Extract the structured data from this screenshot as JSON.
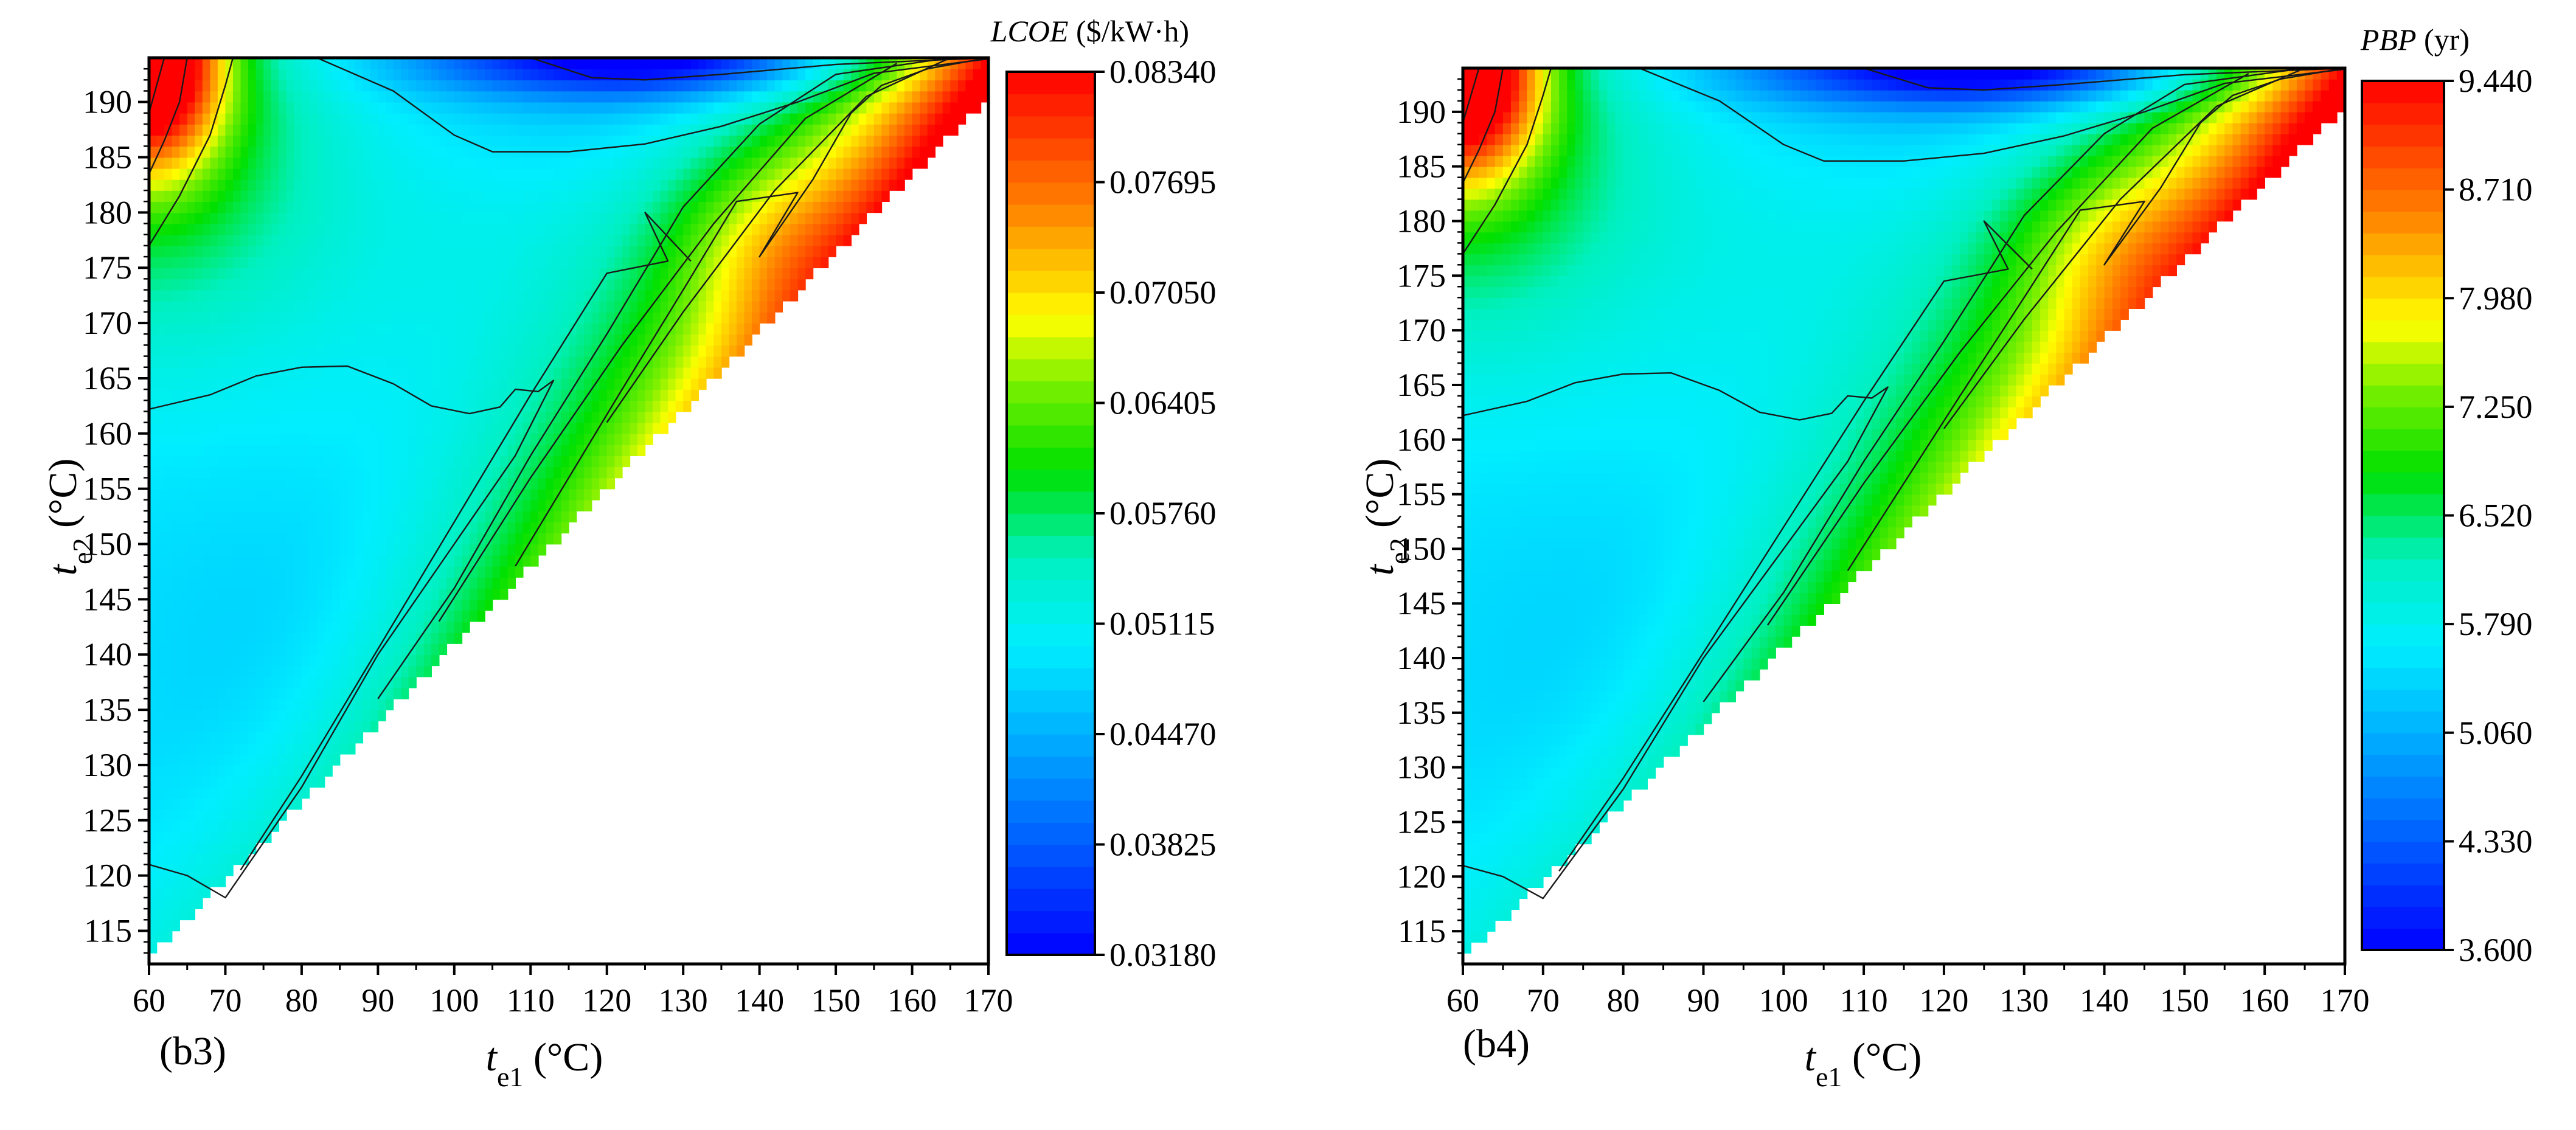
{
  "chart_data": [
    {
      "type": "contour",
      "panel_label": "(b3)",
      "xlabel": {
        "main": "t",
        "sub": "e1",
        "unit": " (°C)"
      },
      "ylabel": {
        "main": "t",
        "sub": "e2",
        "unit": " (°C)"
      },
      "xlim": [
        60,
        170
      ],
      "ylim": [
        112,
        194
      ],
      "x_ticks": [
        "60",
        "70",
        "80",
        "90",
        "100",
        "110",
        "120",
        "130",
        "140",
        "150",
        "160",
        "170"
      ],
      "y_ticks": [
        "115",
        "120",
        "125",
        "130",
        "135",
        "140",
        "145",
        "150",
        "155",
        "160",
        "165",
        "170",
        "175",
        "180",
        "185",
        "190"
      ],
      "colorbar": {
        "title_main": "LCOE",
        "title_unit": " ($/kW·h)",
        "min": 0.0318,
        "max": 0.0834,
        "tick_labels": [
          "0.03180",
          "0.03825",
          "0.04470",
          "0.05115",
          "0.05760",
          "0.06405",
          "0.07050",
          "0.07695",
          "0.08340"
        ]
      },
      "contour_levels_description": "valid region t_e2 > t_e1 + ~20; low values (blue) along top-middle and lower-left; high values (red) near diagonal at high t_e1 and at top-left corner",
      "contour_lines": [
        [
          [
            60,
            162.2
          ],
          [
            68,
            163.5
          ],
          [
            74,
            165.2
          ],
          [
            80,
            166.0
          ],
          [
            86,
            166.1
          ],
          [
            92,
            164.5
          ],
          [
            97,
            162.5
          ],
          [
            102,
            161.8
          ],
          [
            106,
            162.4
          ],
          [
            108,
            164.0
          ],
          [
            111,
            163.8
          ],
          [
            113,
            164.8
          ],
          [
            108,
            158
          ],
          [
            100,
            150
          ],
          [
            90,
            140
          ],
          [
            80,
            128
          ],
          [
            70,
            118
          ],
          [
            65,
            120
          ],
          [
            60,
            121
          ]
        ],
        [
          [
            72,
            120.5
          ],
          [
            80,
            129
          ],
          [
            90,
            140.5
          ],
          [
            100,
            152
          ],
          [
            110,
            163.5
          ],
          [
            120,
            174.5
          ],
          [
            128,
            175.6
          ],
          [
            125,
            180.0
          ],
          [
            131,
            175.6
          ]
        ],
        [
          [
            108,
            148
          ],
          [
            115,
            156
          ],
          [
            122,
            164
          ],
          [
            130,
            173
          ],
          [
            137,
            181
          ],
          [
            145,
            181.8
          ],
          [
            140,
            176
          ],
          [
            147,
            183
          ],
          [
            152,
            189
          ],
          [
            156,
            191.5
          ],
          [
            162,
            193
          ],
          [
            170,
            194
          ]
        ],
        [
          [
            90,
            136
          ],
          [
            100,
            146
          ],
          [
            110,
            158
          ],
          [
            120,
            169
          ],
          [
            130,
            180.5
          ],
          [
            140,
            188
          ],
          [
            150,
            192.5
          ],
          [
            165,
            194
          ]
        ],
        [
          [
            98,
            143
          ],
          [
            110,
            156
          ],
          [
            122,
            168
          ],
          [
            134,
            179
          ],
          [
            146,
            188.5
          ],
          [
            158,
            193.5
          ]
        ],
        [
          [
            120,
            161
          ],
          [
            130,
            171
          ],
          [
            142,
            182
          ],
          [
            154,
            190.5
          ],
          [
            165,
            194
          ]
        ],
        [
          [
            60,
            177
          ],
          [
            64,
            181.5
          ],
          [
            68,
            187
          ],
          [
            70,
            191.5
          ],
          [
            71,
            194
          ]
        ],
        [
          [
            60,
            183.5
          ],
          [
            62,
            186.5
          ],
          [
            64,
            190
          ],
          [
            65,
            194
          ]
        ],
        [
          [
            60,
            189
          ],
          [
            61,
            191.5
          ],
          [
            62,
            194
          ]
        ],
        [
          [
            82,
            194
          ],
          [
            92,
            191
          ],
          [
            100,
            187
          ],
          [
            105,
            185.5
          ],
          [
            115,
            185.5
          ],
          [
            125,
            186.2
          ],
          [
            135,
            187.8
          ],
          [
            145,
            190
          ],
          [
            155,
            192.6
          ],
          [
            170,
            193.9
          ]
        ],
        [
          [
            110,
            194
          ],
          [
            118,
            192.2
          ],
          [
            125,
            192.0
          ],
          [
            135,
            192.5
          ],
          [
            150,
            193.4
          ],
          [
            170,
            194
          ]
        ]
      ]
    },
    {
      "type": "contour",
      "panel_label": "(b4)",
      "xlabel": {
        "main": "t",
        "sub": "e1",
        "unit": " (°C)"
      },
      "ylabel": {
        "main": "t",
        "sub": "e2",
        "unit": " (°C)"
      },
      "xlim": [
        60,
        170
      ],
      "ylim": [
        112,
        194
      ],
      "x_ticks": [
        "60",
        "70",
        "80",
        "90",
        "100",
        "110",
        "120",
        "130",
        "140",
        "150",
        "160",
        "170"
      ],
      "y_ticks": [
        "115",
        "120",
        "125",
        "130",
        "135",
        "140",
        "145",
        "150",
        "155",
        "160",
        "165",
        "170",
        "175",
        "180",
        "185",
        "190"
      ],
      "colorbar": {
        "title_main": "PBP",
        "title_unit": " (yr)",
        "min": 3.6,
        "max": 9.44,
        "tick_labels": [
          "3.600",
          "4.330",
          "5.060",
          "5.790",
          "6.520",
          "7.250",
          "7.980",
          "8.710",
          "9.440"
        ]
      },
      "contour_levels_description": "same topology as LCOE panel",
      "contour_lines": [
        [
          [
            60,
            162.2
          ],
          [
            68,
            163.5
          ],
          [
            74,
            165.2
          ],
          [
            80,
            166.0
          ],
          [
            86,
            166.1
          ],
          [
            92,
            164.5
          ],
          [
            97,
            162.5
          ],
          [
            102,
            161.8
          ],
          [
            106,
            162.4
          ],
          [
            108,
            164.0
          ],
          [
            111,
            163.8
          ],
          [
            113,
            164.8
          ],
          [
            108,
            158
          ],
          [
            100,
            150
          ],
          [
            90,
            140
          ],
          [
            80,
            128
          ],
          [
            70,
            118
          ],
          [
            65,
            120
          ],
          [
            60,
            121
          ]
        ],
        [
          [
            72,
            120.5
          ],
          [
            80,
            129
          ],
          [
            90,
            140.5
          ],
          [
            100,
            152
          ],
          [
            110,
            163.5
          ],
          [
            120,
            174.5
          ],
          [
            128,
            175.6
          ],
          [
            125,
            180.0
          ],
          [
            131,
            175.6
          ]
        ],
        [
          [
            108,
            148
          ],
          [
            115,
            156
          ],
          [
            122,
            164
          ],
          [
            130,
            173
          ],
          [
            137,
            181
          ],
          [
            145,
            181.8
          ],
          [
            140,
            176
          ],
          [
            147,
            183
          ],
          [
            152,
            189
          ],
          [
            156,
            191.5
          ],
          [
            162,
            193
          ],
          [
            170,
            194
          ]
        ],
        [
          [
            90,
            136
          ],
          [
            100,
            146
          ],
          [
            110,
            158
          ],
          [
            120,
            169
          ],
          [
            130,
            180.5
          ],
          [
            140,
            188
          ],
          [
            150,
            192.5
          ],
          [
            165,
            194
          ]
        ],
        [
          [
            98,
            143
          ],
          [
            110,
            156
          ],
          [
            122,
            168
          ],
          [
            134,
            179
          ],
          [
            146,
            188.5
          ],
          [
            158,
            193.5
          ]
        ],
        [
          [
            120,
            161
          ],
          [
            130,
            171
          ],
          [
            142,
            182
          ],
          [
            154,
            190.5
          ],
          [
            165,
            194
          ]
        ],
        [
          [
            60,
            177
          ],
          [
            64,
            181.5
          ],
          [
            68,
            187
          ],
          [
            70,
            191.5
          ],
          [
            71,
            194
          ]
        ],
        [
          [
            60,
            183.5
          ],
          [
            62,
            186.5
          ],
          [
            64,
            190
          ],
          [
            65,
            194
          ]
        ],
        [
          [
            60,
            189
          ],
          [
            61,
            191.5
          ],
          [
            62,
            194
          ]
        ],
        [
          [
            82,
            194
          ],
          [
            92,
            191
          ],
          [
            100,
            187
          ],
          [
            105,
            185.5
          ],
          [
            115,
            185.5
          ],
          [
            125,
            186.2
          ],
          [
            135,
            187.8
          ],
          [
            145,
            190
          ],
          [
            155,
            192.6
          ],
          [
            170,
            193.9
          ]
        ],
        [
          [
            110,
            194
          ],
          [
            118,
            192.2
          ],
          [
            125,
            192.0
          ],
          [
            135,
            192.5
          ],
          [
            150,
            193.4
          ],
          [
            170,
            194
          ]
        ]
      ]
    }
  ]
}
